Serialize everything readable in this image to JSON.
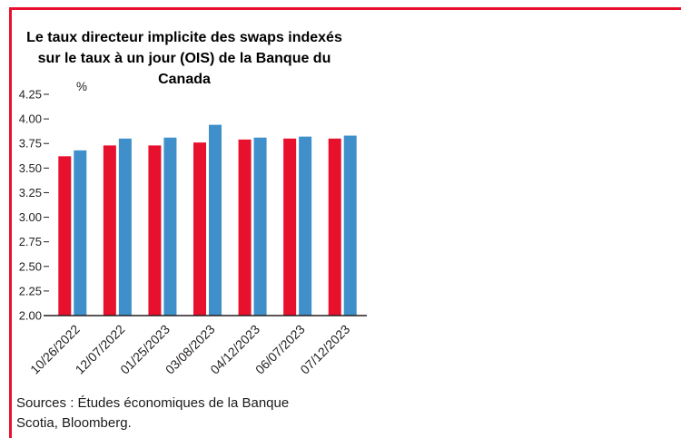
{
  "frame": {
    "accent": "#e8112d"
  },
  "chart_data": {
    "type": "bar",
    "title": "Le taux directeur implicite des swaps indexés sur le taux à un jour (OIS) de la Banque du Canada",
    "ylabel": "%",
    "xlabel": "",
    "ylim": [
      2.0,
      4.25
    ],
    "ytick_step": 0.25,
    "grid": false,
    "legend_position": "none",
    "axis_color": "#231f20",
    "categories": [
      "10/26/2022",
      "12/07/2022",
      "01/25/2023",
      "03/08/2023",
      "04/12/2023",
      "06/07/2023",
      "07/12/2023"
    ],
    "series": [
      {
        "name": "series-red",
        "color": "#e8112d",
        "values": [
          3.62,
          3.73,
          3.73,
          3.76,
          3.79,
          3.8,
          3.8
        ]
      },
      {
        "name": "series-blue",
        "color": "#3e8fca",
        "values": [
          3.68,
          3.8,
          3.81,
          3.94,
          3.81,
          3.82,
          3.83
        ]
      }
    ],
    "source": "Sources : Études économiques de la Banque Scotia, Bloomberg."
  }
}
